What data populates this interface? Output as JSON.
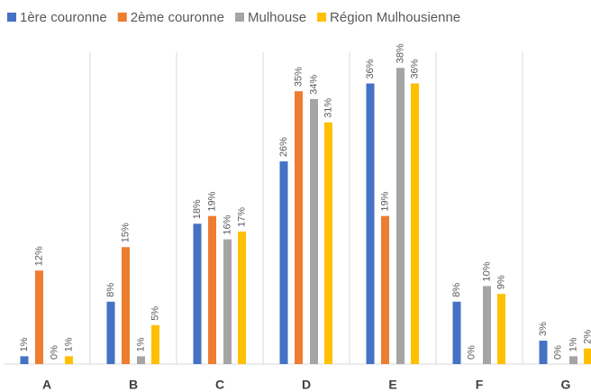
{
  "chart_data": {
    "type": "bar",
    "categories": [
      "A",
      "B",
      "C",
      "D",
      "E",
      "F",
      "G"
    ],
    "ylim": [
      0,
      40
    ],
    "series": [
      {
        "name": "1ère couronne",
        "color": "#4472c4",
        "values": [
          1,
          8,
          18,
          26,
          36,
          8,
          3
        ],
        "value_labels": [
          "1%",
          "8%",
          "18%",
          "26%",
          "36%",
          "8%",
          "3%"
        ]
      },
      {
        "name": "2ème couronne",
        "color": "#ed7d31",
        "values": [
          12,
          15,
          19,
          35,
          19,
          0,
          0
        ],
        "value_labels": [
          "12%",
          "15%",
          "19%",
          "35%",
          "19%",
          "0%",
          "0%"
        ]
      },
      {
        "name": "Mulhouse",
        "color": "#a5a5a5",
        "values": [
          0,
          1,
          16,
          34,
          38,
          10,
          1
        ],
        "value_labels": [
          "0%",
          "1%",
          "16%",
          "34%",
          "38%",
          "10%",
          "1%"
        ]
      },
      {
        "name": "Région Mulhousienne",
        "color": "#ffc000",
        "values": [
          1,
          5,
          17,
          31,
          36,
          9,
          2
        ],
        "value_labels": [
          "1%",
          "5%",
          "17%",
          "31%",
          "36%",
          "9%",
          "2%"
        ]
      }
    ]
  }
}
